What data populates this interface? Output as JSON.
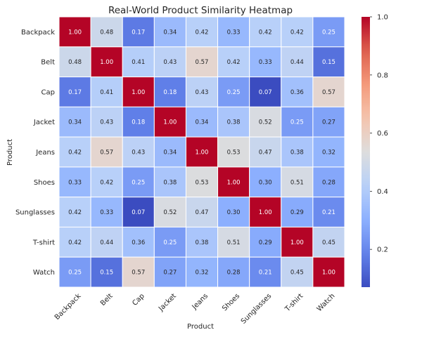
{
  "chart_data": {
    "type": "heatmap",
    "title": "Real-World Product Similarity Heatmap",
    "xlabel": "Product",
    "ylabel": "Product",
    "categories": [
      "Backpack",
      "Belt",
      "Cap",
      "Jacket",
      "Jeans",
      "Shoes",
      "Sunglasses",
      "T-shirt",
      "Watch"
    ],
    "matrix": [
      [
        1.0,
        0.48,
        0.17,
        0.34,
        0.42,
        0.33,
        0.42,
        0.42,
        0.25
      ],
      [
        0.48,
        1.0,
        0.41,
        0.43,
        0.57,
        0.42,
        0.33,
        0.44,
        0.15
      ],
      [
        0.17,
        0.41,
        1.0,
        0.18,
        0.43,
        0.25,
        0.07,
        0.36,
        0.57
      ],
      [
        0.34,
        0.43,
        0.18,
        1.0,
        0.34,
        0.38,
        0.52,
        0.25,
        0.27
      ],
      [
        0.42,
        0.57,
        0.43,
        0.34,
        1.0,
        0.53,
        0.47,
        0.38,
        0.32
      ],
      [
        0.33,
        0.42,
        0.25,
        0.38,
        0.53,
        1.0,
        0.3,
        0.51,
        0.28
      ],
      [
        0.42,
        0.33,
        0.07,
        0.52,
        0.47,
        0.3,
        1.0,
        0.29,
        0.21
      ],
      [
        0.42,
        0.44,
        0.36,
        0.25,
        0.38,
        0.51,
        0.29,
        1.0,
        0.45
      ],
      [
        0.25,
        0.15,
        0.57,
        0.27,
        0.32,
        0.28,
        0.21,
        0.45,
        1.0
      ]
    ],
    "colormap": "coolwarm",
    "vmin": 0.07,
    "vmax": 1.0,
    "colorbar_ticks": [
      "0.2",
      "0.4",
      "0.6",
      "0.8",
      "1.0"
    ],
    "colorbar_tick_values": [
      0.2,
      0.4,
      0.6,
      0.8,
      1.0
    ],
    "grid_line_color": "#ffffff"
  }
}
